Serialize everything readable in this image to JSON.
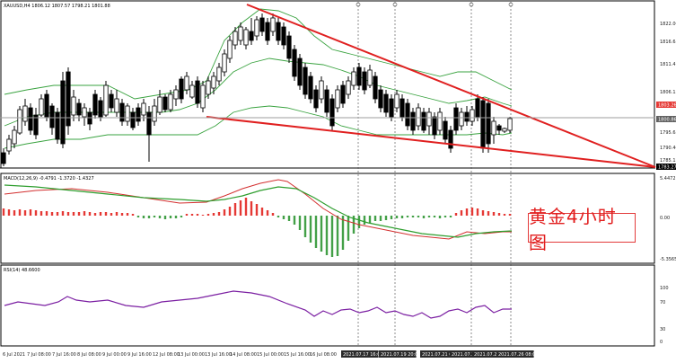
{
  "main_chart": {
    "header": "XAUUSD,H4  1806.12 1807.57 1798.21 1801.88",
    "price_ticks": [
      "1822.00",
      "1816.65",
      "1811.41",
      "1806.15",
      "1801.00",
      "1795.65",
      "1790.40",
      "1785.15"
    ],
    "markers": [
      {
        "label": "1803.26",
        "color": "#e53935"
      },
      {
        "label": "1800.86",
        "color": "#616161"
      },
      {
        "label": "1783.27",
        "color": "#000000"
      }
    ]
  },
  "macd": {
    "header": "MACD(12,26,9) -0.4791 -1.3720 -1.4327",
    "ticks": [
      "5.4472",
      "0.00",
      "-5.3565"
    ]
  },
  "rsi": {
    "header": "RSI(14) 48.6600",
    "ticks": [
      "100",
      "70",
      "30",
      "0"
    ]
  },
  "time_axis": [
    "6 Jul 2021",
    "7 Jul 08:00",
    "7 Jul 16:00",
    "8 Jul 08:00",
    "9 Jul 00:00",
    "9 Jul 16:00",
    "12 Jul 08:00",
    "13 Jul 00:00",
    "13 Jul 16:00",
    "14 Jul 08:00",
    "15 Jul 00:00",
    "15 Jul 16:00",
    "16 Jul 08:00",
    "2021.07.17 16:00",
    "2021.07.19 20:00",
    "2021.07.21 08:00",
    "2021.07.22 04:00",
    "2021.07.23 20:00",
    "2021.07.26 08:00"
  ],
  "watermark": "黄金4小时图",
  "colors": {
    "bull": "#000000",
    "bear": "#000000",
    "bands": "#3aa340",
    "trendline": "#e02020",
    "macd_hist_pos": "#e53935",
    "macd_hist_neg": "#43a047",
    "macd_signal": "#2e9e2e",
    "rsi_line": "#7b1fa2"
  }
}
